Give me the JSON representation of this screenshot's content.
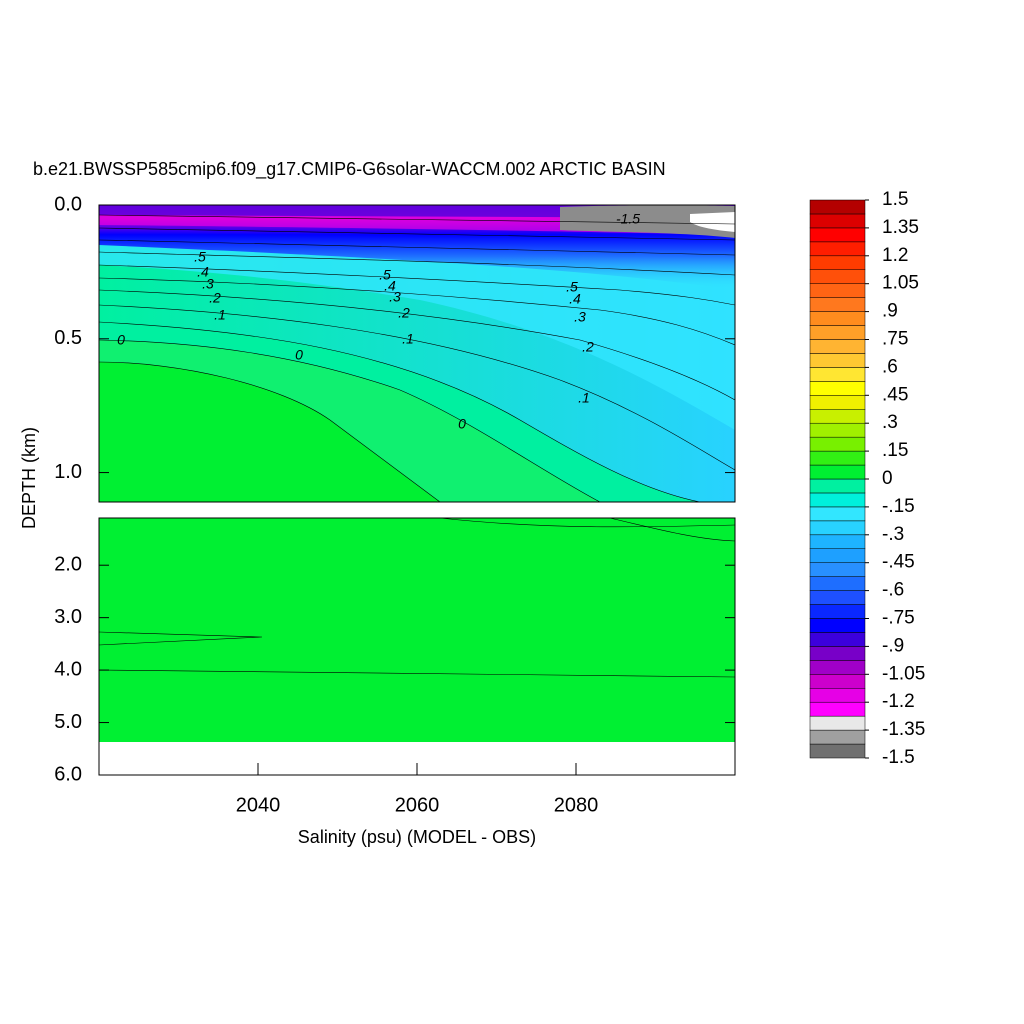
{
  "chart_data": [
    {
      "type": "contour",
      "title": "b.e21.BWSSP585cmip6.f09_g17.CMIP6-G6solar-WACCM.002 ARCTIC BASIN",
      "ylabel": "DEPTH (km)",
      "ylim": [
        0,
        1.11
      ],
      "yticks": [
        {
          "value": 0,
          "label": "0.0"
        },
        {
          "value": 0.5,
          "label": "0.5"
        },
        {
          "value": 1,
          "label": "1.0"
        }
      ],
      "contour_labels": [
        "0",
        "0",
        "0",
        ".1",
        ".1",
        ".1",
        ".2",
        ".2",
        ".2",
        ".3",
        ".3",
        ".3",
        ".4",
        ".4",
        ".4",
        ".5",
        ".5",
        ".5",
        "-1.5"
      ],
      "colorbar": {
        "ticks": [
          1.5,
          1.35,
          1.2,
          1.05,
          {
            "value": 0.9,
            "label": ".9"
          },
          {
            "value": 0.75,
            "label": ".75"
          },
          {
            "value": 0.6,
            "label": ".6"
          },
          {
            "value": 0.45,
            "label": ".45"
          },
          {
            "value": 0.3,
            "label": ".3"
          },
          {
            "value": 0.15,
            "label": ".15"
          },
          0,
          {
            "value": -0.15,
            "label": "-.15"
          },
          {
            "value": -0.3,
            "label": "-.3"
          },
          {
            "value": -0.45,
            "label": "-.45"
          },
          {
            "value": -0.6,
            "label": "-.6"
          },
          {
            "value": -0.75,
            "label": "-.75"
          },
          {
            "value": -0.9,
            "label": "-.9"
          },
          -1.05,
          -1.2,
          -1.35,
          -1.5
        ],
        "lim": [
          -1.5,
          1.5
        ],
        "colors": [
          "#707070",
          "#a0a0a0",
          "#e8e8e8",
          "#ff00ff",
          "#e600e6",
          "#cc00cc",
          "#a000c8",
          "#7800c8",
          "#3c00dc",
          "#0000ff",
          "#0a28ff",
          "#1e50ff",
          "#1e6eff",
          "#2890ff",
          "#1ea0ff",
          "#1eb4ff",
          "#28d2ff",
          "#32e6ff",
          "#00f0dc",
          "#00f0a0",
          "#00f032",
          "#32f014",
          "#78f000",
          "#a0f000",
          "#c8f000",
          "#f0f000",
          "#ffff00",
          "#ffe632",
          "#ffc832",
          "#ffb432",
          "#ffa028",
          "#ff8c1e",
          "#ff781e",
          "#ff6414",
          "#ff500a",
          "#ff3c00",
          "#ff1e00",
          "#ff0000",
          "#dc0000",
          "#b40000"
        ]
      }
    },
    {
      "type": "contour",
      "xlabel": "Salinity (psu) (MODEL - OBS)",
      "xlim": [
        2020,
        2100
      ],
      "xticks": [
        2040,
        2060,
        2080
      ],
      "ylim": [
        1.1,
        6
      ],
      "yticks": [
        {
          "value": 2,
          "label": "2.0"
        },
        {
          "value": 3,
          "label": "3.0"
        },
        {
          "value": 4,
          "label": "4.0"
        },
        {
          "value": 5,
          "label": "5.0"
        },
        {
          "value": 6,
          "label": "6.0"
        }
      ]
    }
  ]
}
